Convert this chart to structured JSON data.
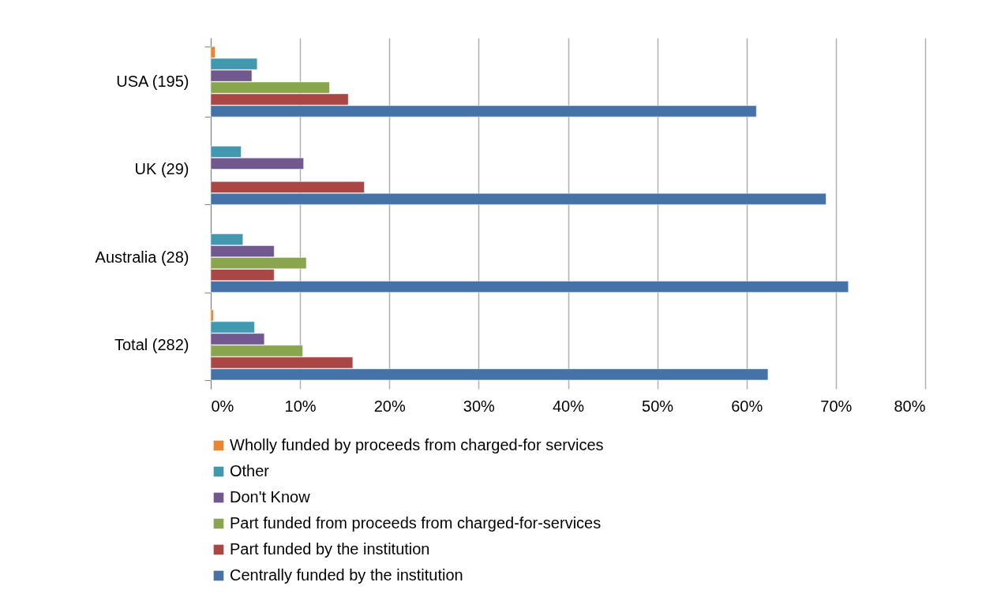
{
  "chart_data": {
    "type": "bar",
    "orientation": "horizontal",
    "categories": [
      "USA (195)",
      "UK (29)",
      "Australia (28)",
      "Total (282)"
    ],
    "series": [
      {
        "name": "Wholly funded by proceeds from charged-for services",
        "color": "#e8872f",
        "values": [
          0.5,
          null,
          null,
          0.3
        ]
      },
      {
        "name": "Other",
        "color": "#4198af",
        "values": [
          5.2,
          3.4,
          3.6,
          4.9
        ]
      },
      {
        "name": "Don't Know",
        "color": "#71588f",
        "values": [
          4.6,
          10.4,
          7.1,
          6.0
        ]
      },
      {
        "name": "Part funded from proceeds from charged-for-services",
        "color": "#89a54e",
        "values": [
          13.3,
          null,
          10.7,
          10.3
        ]
      },
      {
        "name": "Part funded by the institution",
        "color": "#aa4643",
        "values": [
          15.4,
          17.2,
          7.1,
          15.9
        ]
      },
      {
        "name": "Centrally funded by the institution",
        "color": "#4572a7",
        "values": [
          61.1,
          68.9,
          71.4,
          62.4
        ]
      }
    ],
    "xlim": [
      0,
      80
    ],
    "xticks": [
      {
        "value": 0,
        "label": "0%"
      },
      {
        "value": 10,
        "label": "10%"
      },
      {
        "value": 20,
        "label": "20%"
      },
      {
        "value": 30,
        "label": "30%"
      },
      {
        "value": 40,
        "label": "40%"
      },
      {
        "value": 50,
        "label": "50%"
      },
      {
        "value": 60,
        "label": "60%"
      },
      {
        "value": 70,
        "label": "70%"
      },
      {
        "value": 80,
        "label": "80%"
      }
    ],
    "grid": "x",
    "legend": "bottom"
  }
}
